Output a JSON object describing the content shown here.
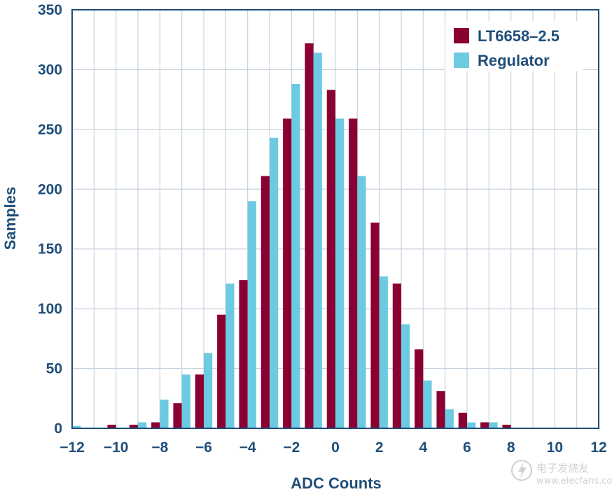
{
  "chart_data": {
    "type": "bar",
    "title": "",
    "xlabel": "ADC Counts",
    "ylabel": "Samples",
    "xlim": [
      -12,
      12
    ],
    "ylim": [
      0,
      350
    ],
    "xticks": [
      -12,
      -10,
      -8,
      -6,
      -4,
      -2,
      0,
      2,
      4,
      6,
      8,
      10,
      12
    ],
    "yticks": [
      0,
      50,
      100,
      150,
      200,
      250,
      300,
      350
    ],
    "xtick_labels": [
      "−12",
      "−10",
      "−8",
      "−6",
      "−4",
      "−2",
      "0",
      "2",
      "4",
      "6",
      "8",
      "10",
      "12"
    ],
    "ytick_labels": [
      "0",
      "50",
      "100",
      "150",
      "200",
      "250",
      "300",
      "350"
    ],
    "grid": true,
    "legend_position": "top-right",
    "x": [
      -12,
      -11,
      -10,
      -9,
      -8,
      -7,
      -6,
      -5,
      -4,
      -3,
      -2,
      -1,
      0,
      1,
      2,
      3,
      4,
      5,
      6,
      7,
      8
    ],
    "series": [
      {
        "name": "LT6658–2.5",
        "color": "#8b0033",
        "values": [
          0,
          0,
          3,
          3,
          5,
          21,
          45,
          95,
          124,
          211,
          259,
          322,
          283,
          259,
          172,
          121,
          66,
          31,
          13,
          5,
          3
        ]
      },
      {
        "name": "Regulator",
        "color": "#6ccbe0",
        "values": [
          2,
          0,
          0,
          5,
          24,
          45,
          63,
          121,
          190,
          243,
          288,
          314,
          259,
          211,
          127,
          87,
          40,
          16,
          5,
          5,
          0
        ]
      }
    ]
  },
  "watermark": {
    "text_cn": "电子发烧友",
    "text_url": "www.elecfans.com"
  }
}
